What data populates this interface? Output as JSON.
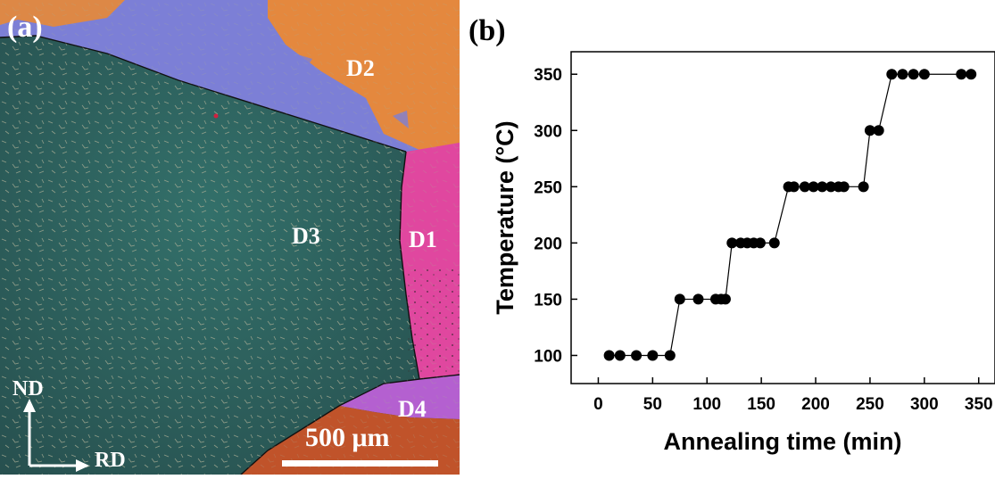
{
  "panel_a": {
    "label": "(a)",
    "grain_labels": [
      "D1",
      "D2",
      "D3",
      "D4"
    ],
    "axis_nd": "ND",
    "axis_rd": "RD",
    "scale_bar": "500 μm",
    "colors": {
      "D1": "#e0479f",
      "D2": "#7c7fd6",
      "D2_orange": "#ef8a2d",
      "D3": "#2f6260",
      "D4": "#b460d0",
      "bottom_grain": "#c0532a"
    }
  },
  "chart_data": {
    "type": "scatter",
    "panel_label": "(b)",
    "title": "",
    "xlabel": "Annealing time (min)",
    "ylabel": "Temperature (°C)",
    "xlim": [
      -25,
      365
    ],
    "ylim": [
      75,
      370
    ],
    "xticks": [
      0,
      50,
      100,
      150,
      200,
      250,
      300,
      350
    ],
    "yticks": [
      100,
      150,
      200,
      250,
      300,
      350
    ],
    "grid": false,
    "marker_color": "#000000",
    "points": [
      [
        10,
        100
      ],
      [
        20,
        100
      ],
      [
        35,
        100
      ],
      [
        50,
        100
      ],
      [
        66,
        100
      ],
      [
        75,
        150
      ],
      [
        92,
        150
      ],
      [
        108,
        150
      ],
      [
        113,
        150
      ],
      [
        117,
        150
      ],
      [
        123,
        200
      ],
      [
        131,
        200
      ],
      [
        137,
        200
      ],
      [
        143,
        200
      ],
      [
        149,
        200
      ],
      [
        162,
        200
      ],
      [
        175,
        250
      ],
      [
        180,
        250
      ],
      [
        190,
        250
      ],
      [
        198,
        250
      ],
      [
        206,
        250
      ],
      [
        214,
        250
      ],
      [
        221,
        250
      ],
      [
        226,
        250
      ],
      [
        244,
        250
      ],
      [
        250,
        300
      ],
      [
        258,
        300
      ],
      [
        270,
        350
      ],
      [
        280,
        350
      ],
      [
        290,
        350
      ],
      [
        300,
        350
      ],
      [
        334,
        350
      ],
      [
        343,
        350
      ]
    ]
  }
}
